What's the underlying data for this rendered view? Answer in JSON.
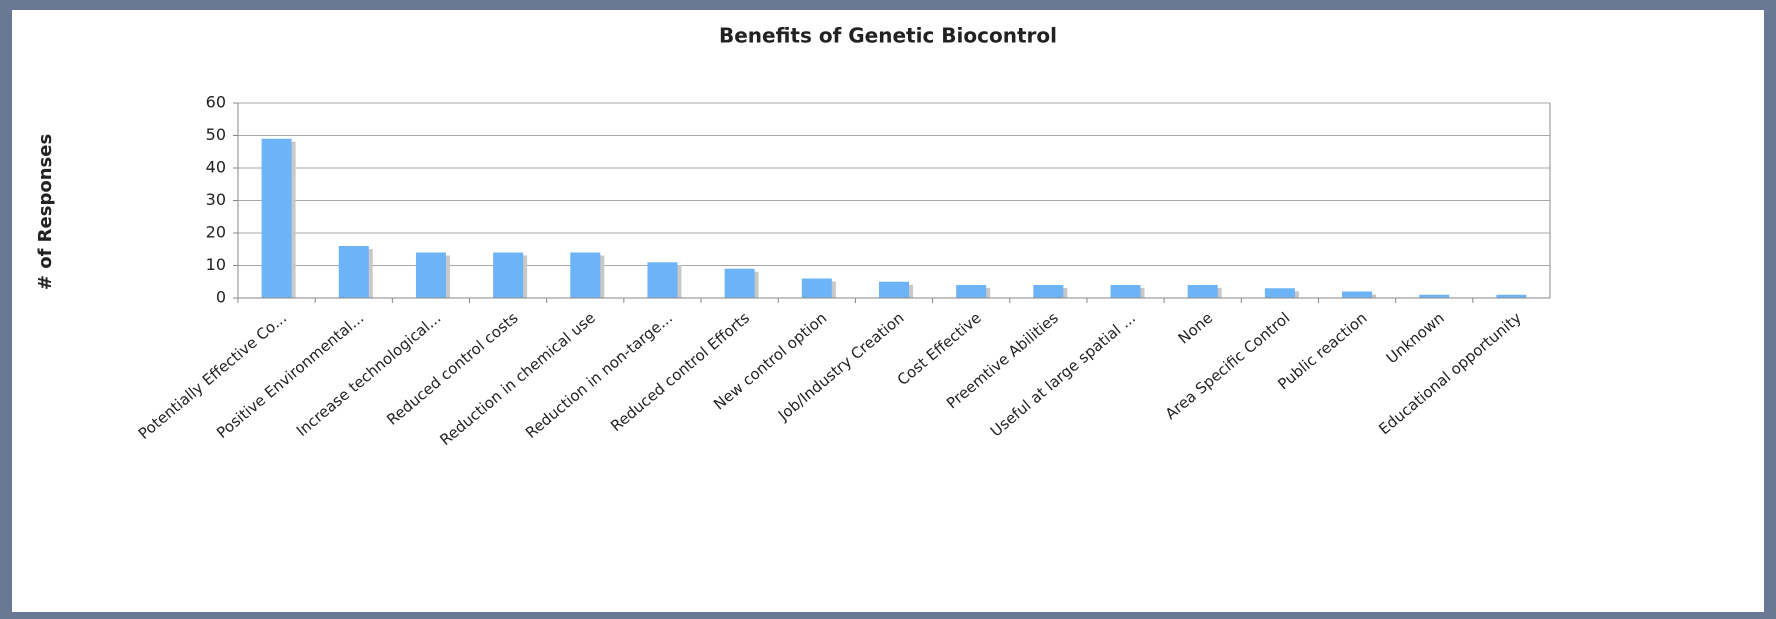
{
  "chart_data": {
    "type": "bar",
    "title": "Benefits of Genetic Biocontrol",
    "y_label": "# of Responses",
    "categories": [
      "Potentially Effective Co...",
      "Positive Environmental...",
      "Increase technological...",
      "Reduced control costs",
      "Reduction in chemical use",
      "Reduction in non-targe...",
      "Reduced control Efforts",
      "New control option",
      "Job/Industry Creation",
      "Cost Effective",
      "Preemtive Abilities",
      "Useful at large spatial ...",
      "None",
      "Area Specific Control",
      "Public reaction",
      "Unknown",
      "Educational opportunity"
    ],
    "values": [
      49,
      16,
      14,
      14,
      14,
      11,
      9,
      6,
      5,
      4,
      4,
      4,
      4,
      3,
      2,
      1,
      1
    ],
    "color": "#6cb4f7",
    "ylim": [
      0,
      60
    ],
    "yticks": [
      0,
      10,
      20,
      30,
      40,
      50,
      60
    ],
    "grid": true
  }
}
